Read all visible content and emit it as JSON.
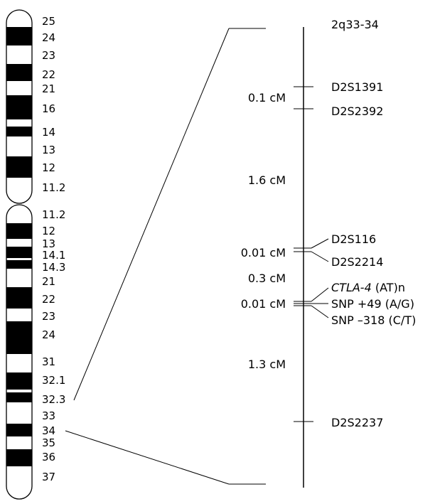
{
  "chromosome": {
    "p_arm_bands": [
      "25",
      "24",
      "23",
      "22",
      "21",
      "16",
      "14",
      "13",
      "12",
      "11.2"
    ],
    "q_arm_bands": [
      "11.2",
      "12",
      "13",
      "14.1",
      "14.3",
      "21",
      "22",
      "23",
      "24",
      "31",
      "32.1",
      "32.3",
      "33",
      "34",
      "35",
      "36",
      "37"
    ]
  },
  "region_title": "2q33-34",
  "markers": [
    {
      "label": "D2S1391"
    },
    {
      "label": "D2S2392"
    },
    {
      "label": "D2S116"
    },
    {
      "label": "D2S2214"
    },
    {
      "label_italic": "CTLA-4",
      "label_rest": " (AT)n"
    },
    {
      "label": "SNP +49 (A/G)"
    },
    {
      "label": "SNP –318 (C/T)"
    },
    {
      "label": "D2S2237"
    }
  ],
  "distances": [
    "0.1 cM",
    "1.6 cM",
    "0.01 cM",
    "0.3 cM",
    "0.01 cM",
    "1.3 cM"
  ]
}
